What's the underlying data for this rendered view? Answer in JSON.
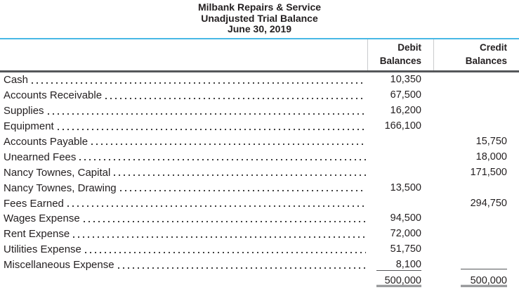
{
  "document": {
    "title": "Milbank Repairs & Service",
    "subtitle": "Unadjusted Trial Balance",
    "date": "June 30, 2019"
  },
  "table": {
    "columns": {
      "debit": {
        "line1": "Debit",
        "line2": "Balances"
      },
      "credit": {
        "line1": "Credit",
        "line2": "Balances"
      }
    },
    "rows": [
      {
        "account": "Cash",
        "debit": "10,350",
        "credit": ""
      },
      {
        "account": "Accounts Receivable",
        "debit": "67,500",
        "credit": ""
      },
      {
        "account": "Supplies",
        "debit": "16,200",
        "credit": ""
      },
      {
        "account": "Equipment",
        "debit": "166,100",
        "credit": ""
      },
      {
        "account": "Accounts Payable",
        "debit": "",
        "credit": "15,750"
      },
      {
        "account": "Unearned Fees",
        "debit": "",
        "credit": "18,000"
      },
      {
        "account": "Nancy Townes, Capital",
        "debit": "",
        "credit": "171,500"
      },
      {
        "account": "Nancy Townes, Drawing",
        "debit": "13,500",
        "credit": ""
      },
      {
        "account": "Fees Earned",
        "debit": "",
        "credit": "294,750"
      },
      {
        "account": "Wages Expense",
        "debit": "94,500",
        "credit": ""
      },
      {
        "account": "Rent Expense",
        "debit": "72,000",
        "credit": ""
      },
      {
        "account": "Utilities Expense",
        "debit": "51,750",
        "credit": ""
      },
      {
        "account": "Miscellaneous Expense",
        "debit": "8,100",
        "credit": "",
        "debit_rule": true,
        "credit_rule": true
      }
    ],
    "totals": {
      "debit": "500,000",
      "credit": "500,000"
    }
  },
  "colors": {
    "accent_rule": "#49b8e5",
    "divider": "#55575a",
    "text": "#231f20"
  }
}
